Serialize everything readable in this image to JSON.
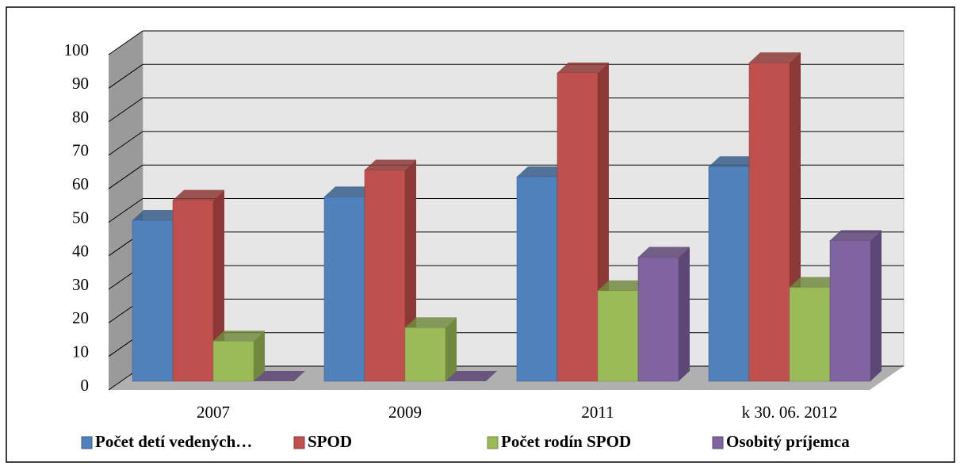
{
  "chart_data": {
    "type": "bar3d",
    "categories": [
      "2007",
      "2009",
      "2011",
      "k 30. 06. 2012"
    ],
    "series": [
      {
        "name": "Počet detí vedených…",
        "color": "#4f81bd",
        "side": "#385d8a",
        "values": [
          48,
          55,
          61,
          64
        ]
      },
      {
        "name": "SPOD",
        "color": "#c0504d",
        "side": "#8c3836",
        "values": [
          54,
          63,
          92,
          95
        ]
      },
      {
        "name": "Počet rodín SPOD",
        "color": "#9bbb59",
        "side": "#71893f",
        "values": [
          12,
          16,
          27,
          28
        ]
      },
      {
        "name": "Osobitý príjemca",
        "color": "#8064a2",
        "side": "#5c4776",
        "values": [
          0,
          0,
          37,
          42
        ]
      }
    ],
    "ylim": [
      0,
      100
    ],
    "yticks": [
      0,
      10,
      20,
      30,
      40,
      50,
      60,
      70,
      80,
      90,
      100
    ],
    "grid": true,
    "legend": "bottom"
  }
}
